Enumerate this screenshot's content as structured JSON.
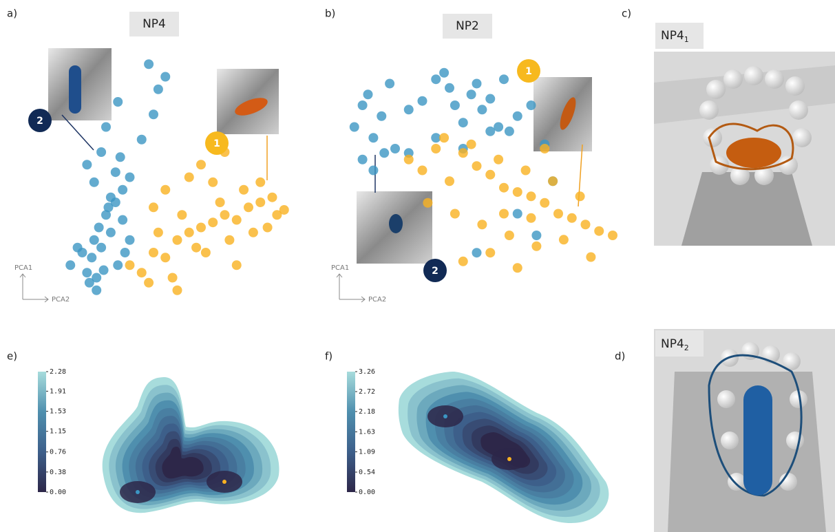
{
  "chart_data": [
    {
      "type": "scatter",
      "panel_label": "a)",
      "title": "NP4",
      "y_axis_label": "PCA1",
      "x_axis_label": "PCA2",
      "badges": [
        "1",
        "2"
      ],
      "xlim": [
        0,
        100
      ],
      "ylim": [
        0,
        100
      ],
      "series": [
        {
          "color": "#3c96c3",
          "x": [
            5,
            10,
            12,
            14,
            15,
            16,
            17,
            18,
            20,
            22,
            24,
            25,
            27,
            28,
            30,
            12,
            15,
            18,
            21,
            24,
            27,
            13,
            16,
            19,
            22,
            26,
            30,
            20,
            25,
            35,
            40,
            42,
            45,
            8,
            38
          ],
          "values": [
            15,
            20,
            12,
            18,
            25,
            10,
            30,
            22,
            35,
            28,
            40,
            15,
            45,
            20,
            50,
            55,
            48,
            60,
            38,
            52,
            33,
            8,
            5,
            13,
            42,
            58,
            25,
            70,
            80,
            65,
            75,
            85,
            90,
            22,
            95
          ]
        },
        {
          "color": "#f9b121",
          "x": [
            30,
            35,
            40,
            45,
            50,
            55,
            60,
            65,
            70,
            75,
            80,
            85,
            90,
            95,
            38,
            48,
            58,
            68,
            78,
            88,
            42,
            52,
            62,
            72,
            82,
            92,
            45,
            55,
            65,
            60,
            70,
            50,
            40,
            75,
            85
          ],
          "values": [
            15,
            12,
            20,
            18,
            25,
            28,
            30,
            32,
            35,
            33,
            38,
            40,
            42,
            37,
            8,
            10,
            22,
            40,
            45,
            30,
            28,
            35,
            20,
            25,
            28,
            35,
            45,
            50,
            48,
            55,
            60,
            5,
            38,
            15,
            48
          ]
        }
      ]
    },
    {
      "type": "scatter",
      "panel_label": "b)",
      "title": "NP2",
      "y_axis_label": "PCA1",
      "x_axis_label": "PCA2",
      "badges": [
        "1",
        "2"
      ],
      "xlim": [
        0,
        100
      ],
      "ylim": [
        0,
        100
      ],
      "series": [
        {
          "color": "#3c96c3",
          "x": [
            5,
            8,
            10,
            12,
            15,
            18,
            20,
            25,
            30,
            35,
            38,
            40,
            42,
            45,
            48,
            50,
            52,
            55,
            58,
            60,
            62,
            65,
            70,
            75,
            8,
            12,
            16,
            35,
            45,
            55,
            65,
            72,
            78,
            50,
            25
          ],
          "values": [
            70,
            80,
            85,
            65,
            75,
            90,
            60,
            78,
            82,
            92,
            95,
            88,
            80,
            72,
            85,
            90,
            78,
            83,
            70,
            92,
            68,
            75,
            80,
            62,
            55,
            50,
            58,
            65,
            60,
            68,
            30,
            20,
            45,
            12,
            58
          ]
        },
        {
          "color": "#f9b121",
          "x": [
            25,
            30,
            35,
            40,
            45,
            50,
            55,
            60,
            65,
            70,
            75,
            80,
            85,
            90,
            95,
            100,
            32,
            42,
            52,
            62,
            72,
            82,
            92,
            38,
            48,
            58,
            68,
            78,
            88,
            45,
            55,
            65,
            75,
            60,
            70
          ],
          "values": [
            55,
            50,
            60,
            45,
            58,
            52,
            48,
            42,
            40,
            38,
            35,
            30,
            28,
            25,
            22,
            20,
            35,
            30,
            25,
            20,
            15,
            18,
            10,
            65,
            62,
            55,
            50,
            45,
            38,
            8,
            12,
            5,
            60,
            30,
            28
          ]
        }
      ]
    },
    {
      "type": "contour",
      "panel_label": "e)",
      "colors": [
        "#2d2749",
        "#3d5f8a",
        "#4f8fae",
        "#a7dcdc"
      ],
      "zlim": [
        0,
        2.28
      ],
      "zticks": [
        {
          "value": 0,
          "label": "0.00"
        },
        0.38,
        0.76,
        1.15,
        1.53,
        1.91,
        2.28
      ]
    },
    {
      "type": "contour",
      "panel_label": "f)",
      "colors": [
        "#2d2749",
        "#3d5f8a",
        "#4f8fae",
        "#a7dcdc"
      ],
      "zlim": [
        0,
        3.26
      ],
      "zticks": [
        {
          "value": 0,
          "label": "0.00"
        },
        0.54,
        1.09,
        1.63,
        2.18,
        2.72,
        3.26
      ]
    }
  ],
  "structures": [
    {
      "panel_label": "c)",
      "title": "NP4",
      "subscript": "1"
    },
    {
      "panel_label": "d)",
      "title": "NP4",
      "subscript": "2"
    }
  ]
}
